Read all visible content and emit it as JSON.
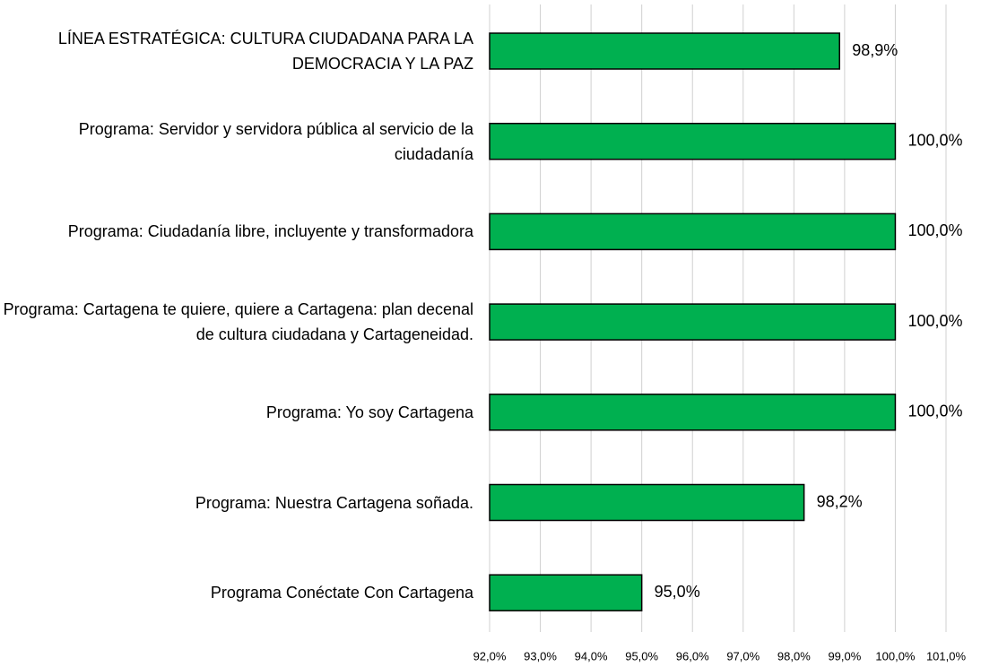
{
  "chart_data": {
    "type": "barh",
    "categories": [
      "LÍNEA ESTRATÉGICA: CULTURA CIUDADANA PARA LA DEMOCRACIA Y LA PAZ",
      "Programa: Servidor y servidora pública al servicio de la ciudadanía",
      "Programa: Ciudadanía libre, incluyente y transformadora",
      "Programa: Cartagena te quiere, quiere a Cartagena: plan decenal de cultura ciudadana y Cartageneidad.",
      "Programa: Yo soy Cartagena",
      "Programa: Nuestra Cartagena soñada.",
      "Programa Conéctate Con Cartagena"
    ],
    "values": [
      98.9,
      100,
      100,
      100,
      100,
      98.2,
      95
    ],
    "value_labels": [
      "98,9%",
      "100,0%",
      "100,0%",
      "100,0%",
      "100,0%",
      "98,2%",
      "95,0%"
    ],
    "color": "#00b050",
    "xlim": [
      92,
      101
    ],
    "xticks": [
      {
        "value": 92,
        "label": "92,0%"
      },
      {
        "value": 93,
        "label": "93,0%"
      },
      {
        "value": 94,
        "label": "94,0%"
      },
      {
        "value": 95,
        "label": "95,0%"
      },
      {
        "value": 96,
        "label": "96,0%"
      },
      {
        "value": 97,
        "label": "97,0%"
      },
      {
        "value": 98,
        "label": "98,0%"
      },
      {
        "value": 99,
        "label": "99,0%"
      },
      {
        "value": 100,
        "label": "100,0%"
      },
      {
        "value": 101,
        "label": "101,0%"
      }
    ],
    "grid": true
  }
}
